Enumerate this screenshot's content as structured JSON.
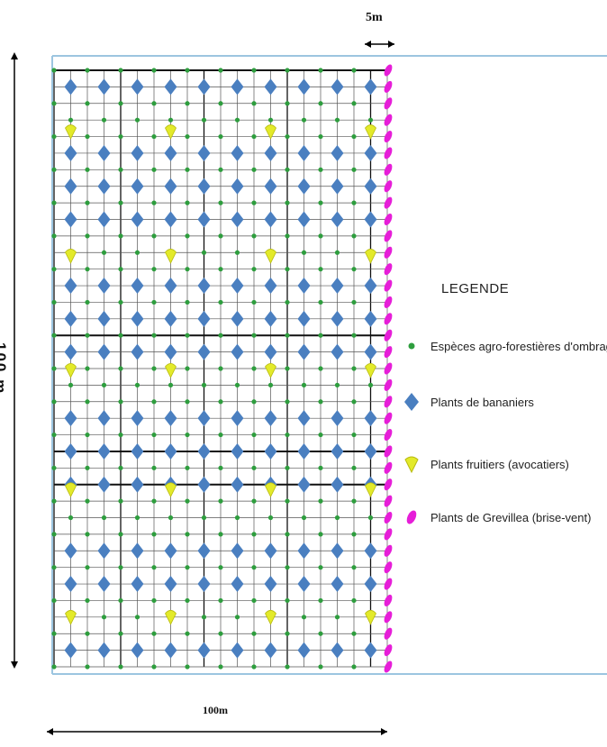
{
  "dimensions": {
    "top_width": "5m",
    "bottom_width": "100m",
    "left_height": "100.m"
  },
  "legend": {
    "title": "LEGENDE",
    "items": [
      {
        "label": "Espèces agro-forestières  d'ombrage",
        "icon": "green-dot-icon",
        "color": "#2e9e3e"
      },
      {
        "label": "Plants de bananiers",
        "icon": "blue-diamond-icon",
        "color": "#4a7fc0"
      },
      {
        "label": "Plants fruitiers (avocatiers)",
        "icon": "yellow-drop-icon",
        "color": "#e3ea2a"
      },
      {
        "label": "Plants de Grevillea (brise-vent)",
        "icon": "magenta-petal-icon",
        "color": "#e61ed8"
      }
    ]
  },
  "colors": {
    "border": "#9cc5e0",
    "grid": "#555555",
    "grid_thick": "#111111",
    "shade": "#2e9e3e",
    "banana": "#4a7fc0",
    "avocado": "#e3ea2a",
    "grevillea": "#e61ed8"
  }
}
